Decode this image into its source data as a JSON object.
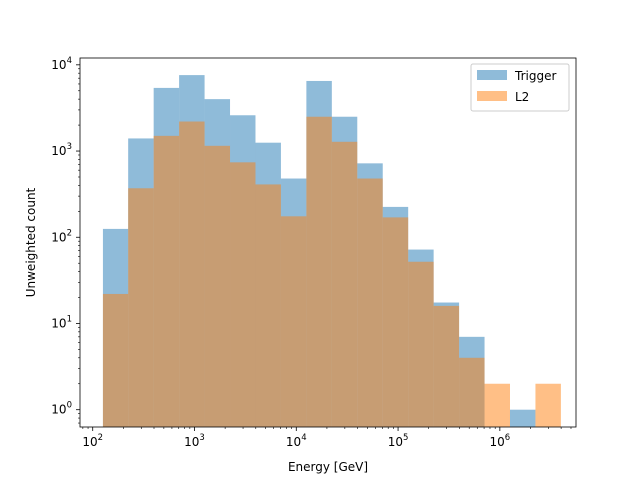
{
  "chart_data": {
    "type": "bar",
    "xscale": "log",
    "yscale": "log",
    "xlabel": "Energy [GeV]",
    "ylabel": "Unweighted count",
    "xlim": [
      75,
      5600
    ],
    "ylim": [
      0.63,
      12000
    ],
    "xlim_high": 5600000,
    "xticks": [
      {
        "value": 100,
        "base": "10",
        "exp": "2"
      },
      {
        "value": 1000,
        "base": "10",
        "exp": "3"
      },
      {
        "value": 10000,
        "base": "10",
        "exp": "4"
      },
      {
        "value": 100000,
        "base": "10",
        "exp": "5"
      },
      {
        "value": 1000000,
        "base": "10",
        "exp": "6"
      }
    ],
    "yticks": [
      {
        "value": 1,
        "base": "10",
        "exp": "0"
      },
      {
        "value": 10,
        "base": "10",
        "exp": "1"
      },
      {
        "value": 100,
        "base": "10",
        "exp": "2"
      },
      {
        "value": 1000,
        "base": "10",
        "exp": "3"
      },
      {
        "value": 10000,
        "base": "10",
        "exp": "4"
      }
    ],
    "bin_edges": [
      126,
      223,
      397,
      706,
      1256,
      2234,
      3973,
      7065,
      12566,
      22349,
      39748,
      70692,
      125730,
      223610,
      397700,
      707330,
      1258000,
      2237400,
      3979300
    ],
    "series": [
      {
        "name": "Trigger",
        "color": "#1f77b4",
        "alpha": 0.5,
        "values": [
          125,
          1400,
          5400,
          7600,
          4000,
          2600,
          1250,
          480,
          6500,
          2500,
          720,
          225,
          72,
          17.5,
          7,
          0,
          1,
          0
        ]
      },
      {
        "name": "L2",
        "color": "#ff7f0e",
        "alpha": 0.5,
        "values": [
          22,
          370,
          1500,
          2200,
          1150,
          740,
          410,
          175,
          2500,
          1280,
          480,
          170,
          52,
          16,
          4,
          2,
          0,
          2
        ]
      }
    ],
    "legend": {
      "placement": "top-right",
      "entries": [
        "Trigger",
        "L2"
      ]
    },
    "grid": false
  }
}
